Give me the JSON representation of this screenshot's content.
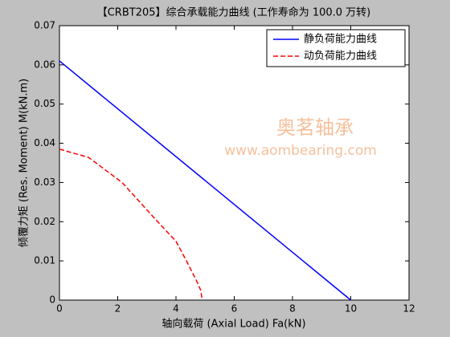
{
  "chart_data": {
    "type": "line",
    "title": "【CRBT205】综合承载能力曲线 (工作寿命为 100.0 万转)",
    "x_label": "轴向载荷 (Axial Load) Fa(kN)",
    "y_label": "倾覆力矩 (Res. Moment) M(kN.m)",
    "watermark": [
      "奥茗轴承",
      "www.aombearing.com"
    ],
    "xlim": [
      0,
      12
    ],
    "xticks": [
      0,
      2,
      4,
      6,
      8,
      10,
      12
    ],
    "ylim": [
      0,
      0.07
    ],
    "yticks": [
      0,
      0.01,
      0.02,
      0.03,
      0.04,
      0.05,
      0.06,
      0.07
    ],
    "legend": "upper right",
    "series": [
      {
        "name": "静负荷能力曲线",
        "color": "#0000ff",
        "dash": "solid",
        "x": [
          0,
          10
        ],
        "values": [
          0.061,
          0
        ]
      },
      {
        "name": "动负荷能力曲线",
        "color": "#ff0000",
        "dash": "dashed",
        "x": [
          0,
          1,
          2.15,
          3.37,
          4.0,
          4.36,
          4.7,
          4.85,
          4.9
        ],
        "values": [
          0.0385,
          0.0364,
          0.03,
          0.02,
          0.015,
          0.01,
          0.005,
          0.0025,
          0
        ]
      }
    ]
  }
}
